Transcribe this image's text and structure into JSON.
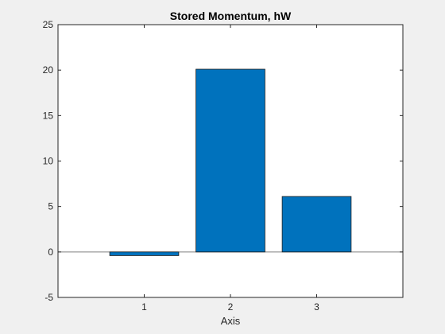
{
  "chart_data": {
    "type": "bar",
    "title": "Stored Momentum, hW",
    "xlabel": "Axis",
    "ylabel": "",
    "categories": [
      "1",
      "2",
      "3"
    ],
    "values": [
      -0.4,
      20.1,
      6.1
    ],
    "xlim": [
      0,
      4
    ],
    "ylim": [
      -5,
      25
    ],
    "yticks": [
      -5,
      0,
      5,
      10,
      15,
      20,
      25
    ],
    "grid": false,
    "bar_color": "#0072BD",
    "bar_edge_color": "#1a1a1a",
    "axes_background": "#ffffff",
    "figure_background": "#f0f0f0",
    "baseline_color": "#7f7f7f"
  }
}
